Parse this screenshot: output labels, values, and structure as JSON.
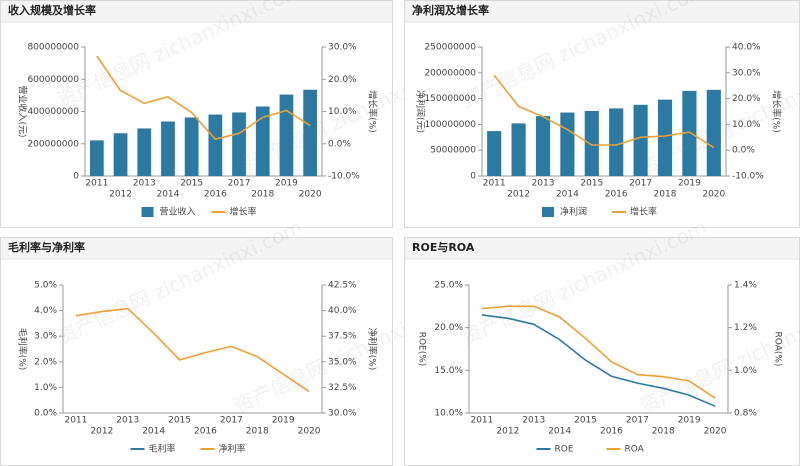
{
  "watermark": "资产信息网 zichanxinxi.com",
  "chart_data": [
    {
      "type": "combo",
      "title": "收入规模及增长率",
      "categories": [
        "2011",
        "2012",
        "2013",
        "2014",
        "2015",
        "2016",
        "2017",
        "2018",
        "2019",
        "2020"
      ],
      "ylabel": "营业收入(元)",
      "y2label": "增长率(%)",
      "ylim": [
        0,
        800000000
      ],
      "yticks": [
        0,
        200000000,
        400000000,
        600000000,
        800000000
      ],
      "y2lim": [
        -10,
        30
      ],
      "y2ticks": [
        {
          "value": -10,
          "label": "-10.0%"
        },
        {
          "value": 0,
          "label": "0.0%"
        },
        {
          "value": 10,
          "label": "10.0%"
        },
        {
          "value": 20,
          "label": "20.0%"
        },
        {
          "value": 30,
          "label": "30.0%"
        }
      ],
      "grid": false,
      "legend": "bottom",
      "series": [
        {
          "name": "营业收入",
          "type": "bar",
          "color": "#2b7aa3",
          "values": [
            221000000,
            265000000,
            295000000,
            338000000,
            363000000,
            381000000,
            394000000,
            431000000,
            505000000,
            535000000
          ]
        },
        {
          "name": "增长率",
          "type": "line",
          "axis": "y2",
          "color": "#f0a030",
          "values": [
            27.2,
            16.5,
            12.5,
            14.6,
            9.7,
            1.4,
            3.2,
            8.2,
            10.3,
            5.7
          ]
        }
      ]
    },
    {
      "type": "combo",
      "title": "净利润及增长率",
      "categories": [
        "2011",
        "2012",
        "2013",
        "2014",
        "2015",
        "2016",
        "2017",
        "2018",
        "2019",
        "2020"
      ],
      "ylabel": "净利润(元)",
      "y2label": "增长率(%)",
      "ylim": [
        0,
        250000000
      ],
      "yticks": [
        0,
        50000000,
        100000000,
        150000000,
        200000000,
        250000000
      ],
      "y2lim": [
        -10,
        40
      ],
      "y2ticks": [
        {
          "value": -10,
          "label": "-10.0%"
        },
        {
          "value": 0,
          "label": "0.0%"
        },
        {
          "value": 10,
          "label": "10.0%"
        },
        {
          "value": 20,
          "label": "20.0%"
        },
        {
          "value": 30,
          "label": "30.0%"
        },
        {
          "value": 40,
          "label": "40.0%"
        }
      ],
      "grid": false,
      "legend": "bottom",
      "series": [
        {
          "name": "净利润",
          "type": "bar",
          "color": "#2b7aa3",
          "values": [
            87000000,
            102000000,
            116000000,
            123000000,
            126000000,
            131000000,
            138000000,
            148000000,
            165000000,
            167000000
          ]
        },
        {
          "name": "增长率",
          "type": "line",
          "axis": "y2",
          "color": "#f0a030",
          "values": [
            29,
            17,
            13,
            8,
            2,
            2,
            5,
            5.5,
            7,
            1
          ]
        }
      ]
    },
    {
      "type": "line",
      "title": "毛利率与净利率",
      "categories": [
        "2011",
        "2012",
        "2013",
        "2014",
        "2015",
        "2016",
        "2017",
        "2018",
        "2019",
        "2020"
      ],
      "ylabel": "毛利率(%)",
      "y2label": "净利率(%)",
      "ylim": [
        0,
        5
      ],
      "yticks": [
        {
          "value": 0,
          "label": "0.0%"
        },
        {
          "value": 1,
          "label": "1.0%"
        },
        {
          "value": 2,
          "label": "2.0%"
        },
        {
          "value": 3,
          "label": "3.0%"
        },
        {
          "value": 4,
          "label": "4.0%"
        },
        {
          "value": 5,
          "label": "5.0%"
        }
      ],
      "y2lim": [
        30,
        42.5
      ],
      "y2ticks": [
        {
          "value": 30,
          "label": "30.0%"
        },
        {
          "value": 32.5,
          "label": "32.5%"
        },
        {
          "value": 35,
          "label": "35.0%"
        },
        {
          "value": 37.5,
          "label": "37.5%"
        },
        {
          "value": 40,
          "label": "40.0%"
        },
        {
          "value": 42.5,
          "label": "42.5%"
        }
      ],
      "grid": false,
      "legend": "bottom",
      "series": [
        {
          "name": "毛利率",
          "type": "line",
          "color": "#2b7aa3",
          "values": [
            null,
            null,
            null,
            null,
            null,
            null,
            null,
            null,
            null,
            null
          ]
        },
        {
          "name": "净利率",
          "type": "line",
          "axis": "y2",
          "color": "#f0a030",
          "values": [
            39.5,
            39.9,
            40.2,
            37.8,
            35.2,
            35.9,
            36.5,
            35.5,
            33.8,
            32.1
          ]
        }
      ]
    },
    {
      "type": "line",
      "title": "ROE与ROA",
      "categories": [
        "2011",
        "2012",
        "2013",
        "2014",
        "2015",
        "2016",
        "2017",
        "2018",
        "2019",
        "2020"
      ],
      "ylabel": "ROE(%)",
      "y2label": "ROA(%)",
      "ylim": [
        10,
        25
      ],
      "yticks": [
        {
          "value": 10,
          "label": "10.0%"
        },
        {
          "value": 15,
          "label": "15.0%"
        },
        {
          "value": 20,
          "label": "20.0%"
        },
        {
          "value": 25,
          "label": "25.0%"
        }
      ],
      "y2lim": [
        0.8,
        1.4
      ],
      "y2ticks": [
        {
          "value": 0.8,
          "label": "0.8%"
        },
        {
          "value": 1.0,
          "label": "1.0%"
        },
        {
          "value": 1.2,
          "label": "1.2%"
        },
        {
          "value": 1.4,
          "label": "1.4%"
        }
      ],
      "grid": false,
      "legend": "bottom",
      "series": [
        {
          "name": "ROE",
          "type": "line",
          "color": "#2b7aa3",
          "values": [
            21.5,
            21.1,
            20.4,
            18.6,
            16.2,
            14.3,
            13.5,
            12.9,
            12.1,
            10.8
          ]
        },
        {
          "name": "ROA",
          "type": "line",
          "axis": "y2",
          "color": "#f0a030",
          "values": [
            1.29,
            1.3,
            1.3,
            1.25,
            1.15,
            1.04,
            0.98,
            0.97,
            0.95,
            0.87
          ]
        }
      ]
    }
  ]
}
